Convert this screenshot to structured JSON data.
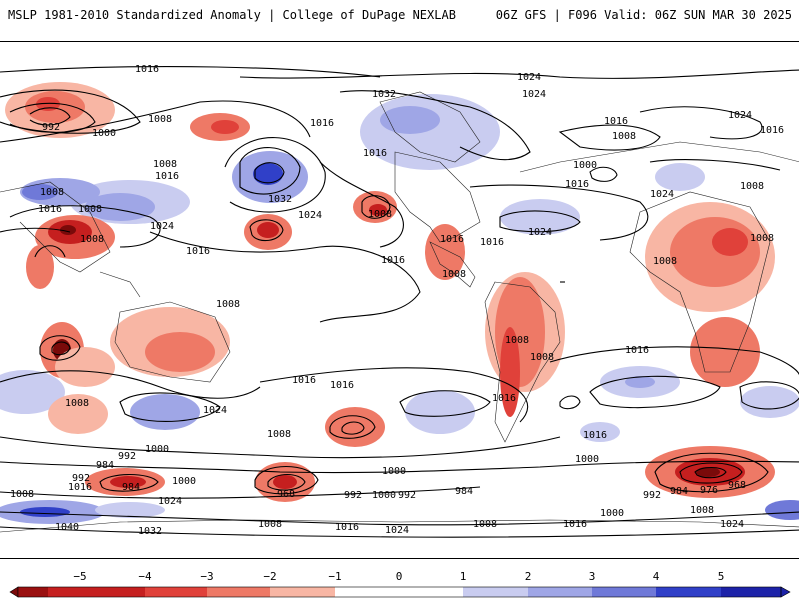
{
  "header": {
    "title": "MSLP 1981-2010 Standardized Anomaly | College of DuPage NEXLAB",
    "run_info": "06Z GFS | F096 Valid: 06Z SUN MAR 30 2025"
  },
  "map": {
    "contour_labels": [
      "1016",
      "1024",
      "1024",
      "1032",
      "992",
      "1000",
      "1008",
      "1016",
      "1008",
      "1016",
      "1016",
      "1008",
      "1016",
      "1024",
      "1032",
      "1024",
      "1008",
      "1016",
      "1008",
      "1024",
      "1016",
      "1016",
      "1008",
      "1016",
      "1008",
      "1008",
      "1008",
      "1024",
      "1016",
      "1008",
      "1016",
      "1008",
      "1024",
      "1016",
      "1000",
      "1008",
      "1008",
      "1016",
      "1008",
      "1016",
      "1024",
      "1016",
      "1008",
      "1016",
      "1000",
      "992",
      "1000",
      "984",
      "992",
      "1016",
      "984",
      "1000",
      "1008",
      "1024",
      "968",
      "992",
      "1000",
      "992",
      "984",
      "976",
      "968",
      "984",
      "992",
      "1040",
      "1032",
      "1008",
      "1016",
      "1024",
      "1008",
      "1016",
      "1000",
      "1008",
      "1024",
      "1008",
      "1000",
      "1016"
    ],
    "colors": {
      "neg5": "#7a0a0a",
      "neg4": "#c51f1f",
      "neg3": "#e0413a",
      "neg2": "#ee7966",
      "neg1": "#f8b6a4",
      "pos1": "#c9ccf0",
      "pos2": "#9fa6e6",
      "pos3": "#6f79d8",
      "pos4": "#3040c8",
      "pos5": "#1c22a8"
    }
  },
  "colorbar": {
    "ticks": [
      "−5",
      "−4",
      "−3",
      "−2",
      "−1",
      "0",
      "1",
      "2",
      "3",
      "4",
      "5"
    ]
  }
}
